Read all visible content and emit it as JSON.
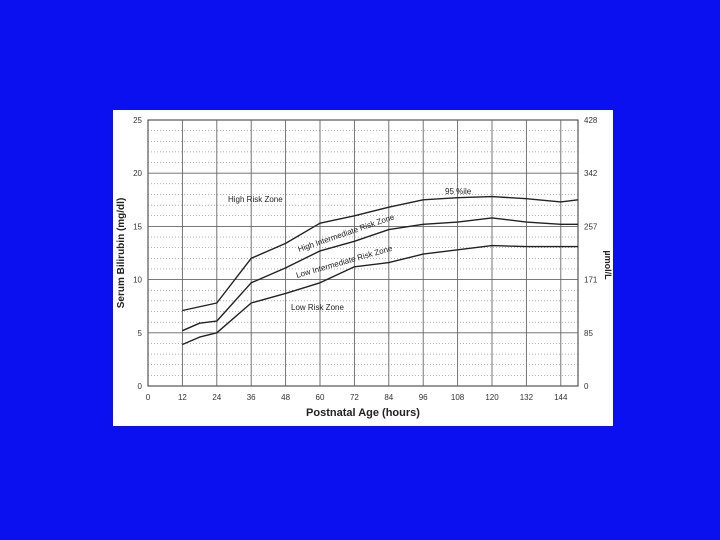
{
  "chart_data": {
    "type": "line",
    "title": "",
    "xlabel": "Postnatal Age (hours)",
    "ylabel": "Serum Bilirubin (mg/dl)",
    "y2label": "µmol/L",
    "xlim": [
      0,
      150
    ],
    "ylim": [
      0,
      25
    ],
    "x_ticks": [
      "0",
      "12",
      "24",
      "36",
      "48",
      "60",
      "72",
      "84",
      "96",
      "108",
      "120",
      "132",
      "144"
    ],
    "y_ticks": [
      "0",
      "5",
      "10",
      "15",
      "20",
      "25"
    ],
    "y2_ticks": [
      "0",
      "85",
      "171",
      "257",
      "342",
      "428"
    ],
    "grid": true,
    "series": [
      {
        "name": "95th %ile",
        "x": [
          12,
          24,
          36,
          48,
          60,
          72,
          84,
          96,
          108,
          120,
          132,
          144,
          150
        ],
        "values": [
          7.1,
          7.8,
          12.0,
          13.4,
          15.3,
          16.0,
          16.8,
          17.5,
          17.7,
          17.8,
          17.6,
          17.3,
          17.5
        ]
      },
      {
        "name": "",
        "x": [
          12,
          18,
          24,
          36,
          48,
          60,
          72,
          84,
          96,
          108,
          120,
          132,
          144,
          150
        ],
        "values": [
          5.2,
          5.9,
          6.1,
          9.7,
          11.1,
          12.7,
          13.6,
          14.7,
          15.2,
          15.4,
          15.8,
          15.4,
          15.2,
          15.2
        ]
      },
      {
        "name": "",
        "x": [
          12,
          18,
          24,
          36,
          48,
          60,
          72,
          84,
          96,
          108,
          120,
          132,
          144,
          150
        ],
        "values": [
          3.9,
          4.6,
          5.0,
          7.8,
          8.7,
          9.7,
          11.2,
          11.6,
          12.4,
          12.8,
          13.2,
          13.1,
          13.1,
          13.1
        ]
      }
    ],
    "zones": [
      "High Risk Zone",
      "High Intermediate Risk Zone",
      "Low Intermediate Risk Zone",
      "Low Risk Zone"
    ],
    "annotations": [
      "95 %ile"
    ]
  },
  "colors": {
    "background": "#0a10f0",
    "panel": "#ffffff",
    "line": "#222222",
    "grid": "#666666"
  }
}
